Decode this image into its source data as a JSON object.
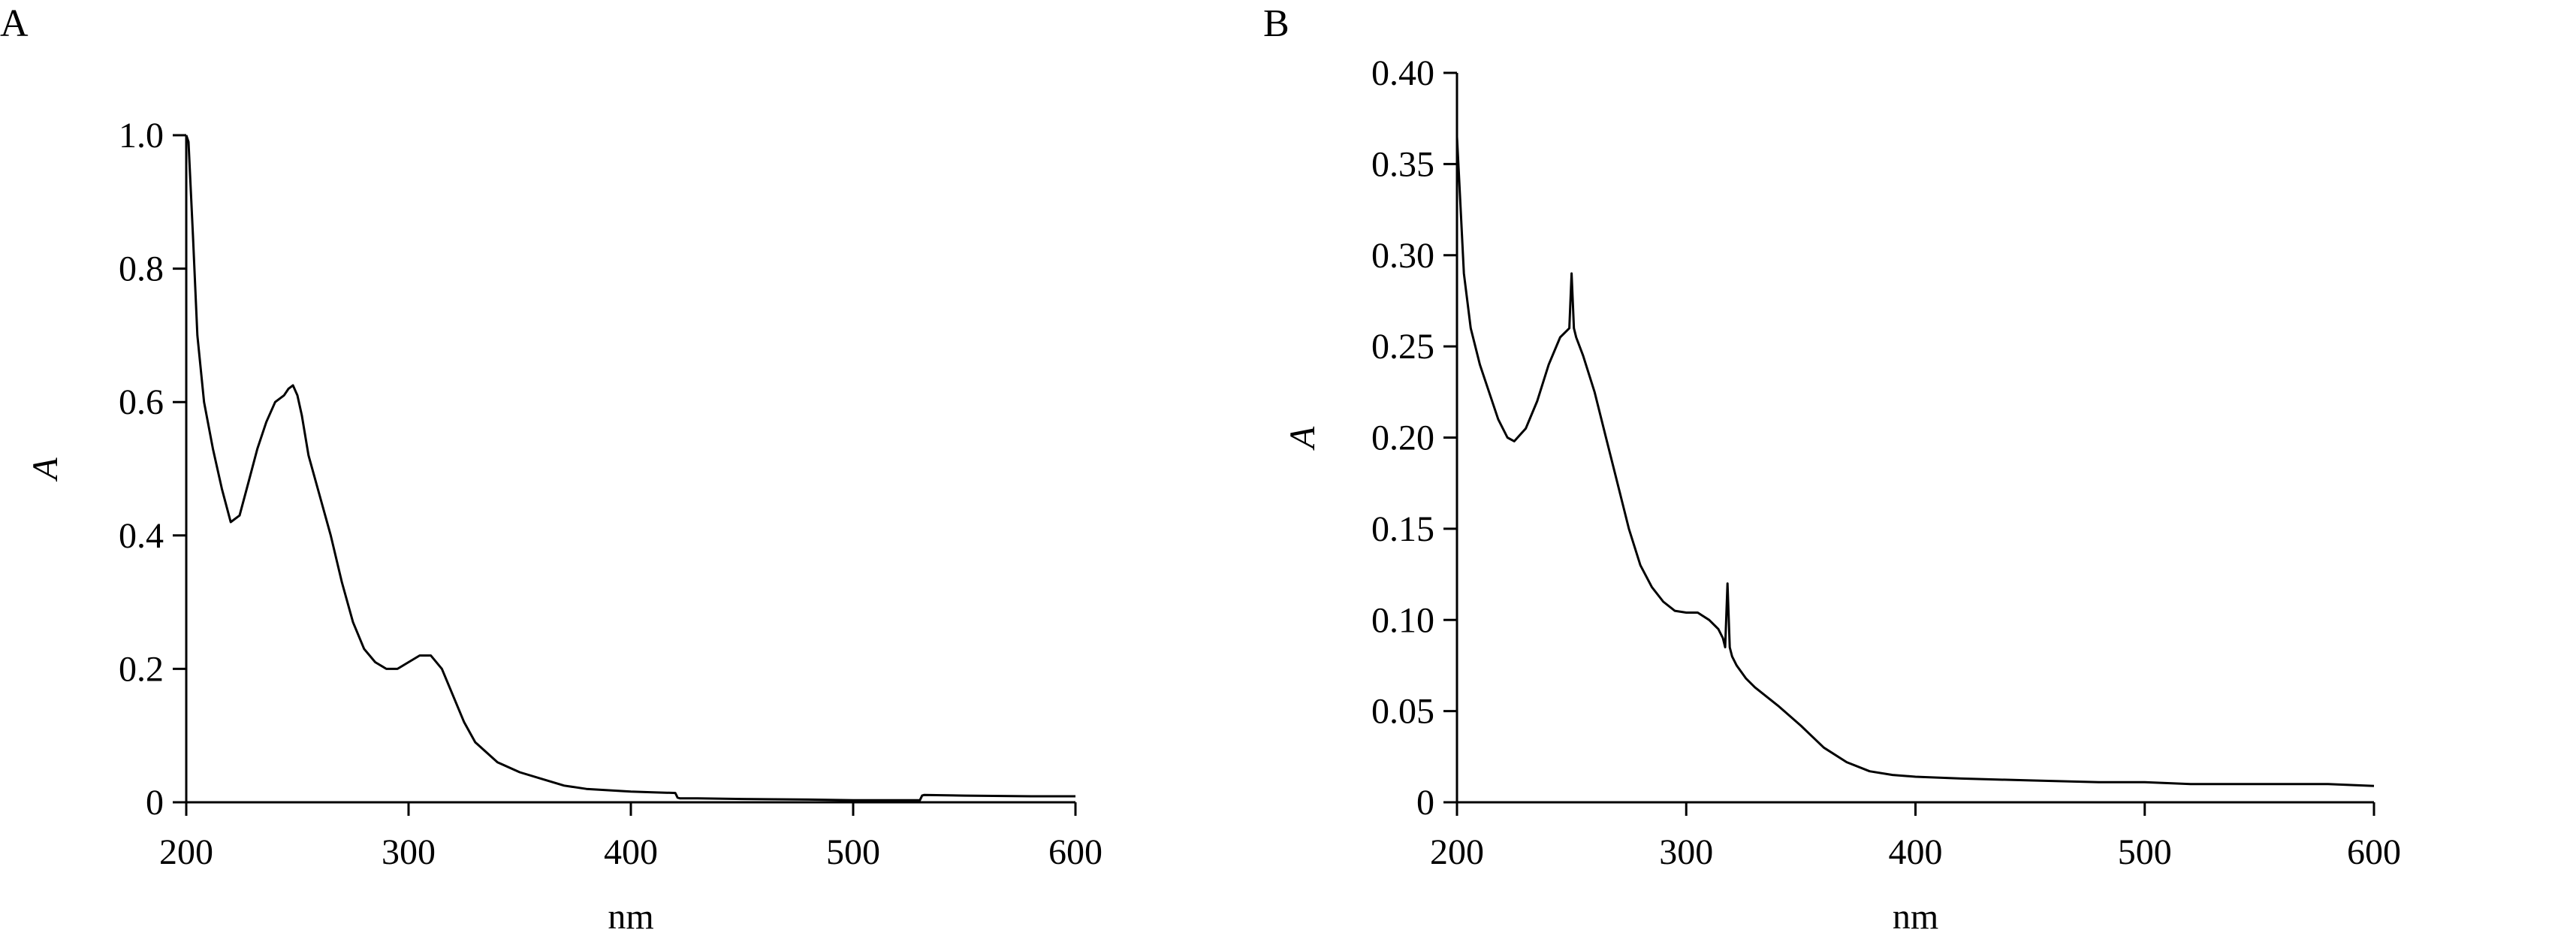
{
  "chart_data": [
    {
      "panel_label": "A",
      "type": "line",
      "xlabel": "nm",
      "ylabel": "A",
      "xlim": [
        200,
        600
      ],
      "ylim": [
        0,
        1.0
      ],
      "xticks": [
        200,
        300,
        400,
        500,
        600
      ],
      "yticks": [
        0,
        0.2,
        0.4,
        0.6,
        0.8,
        1.0
      ],
      "xtick_labels": [
        "200",
        "300",
        "400",
        "500",
        "600"
      ],
      "ytick_labels": [
        "0",
        "0.2",
        "0.4",
        "0.6",
        "0.8",
        "1.0"
      ],
      "grid": false,
      "series": [
        {
          "x": [
            200,
            201,
            203,
            205,
            208,
            212,
            216,
            220,
            224,
            228,
            232,
            236,
            240,
            244,
            246,
            248,
            250,
            252,
            255,
            260,
            265,
            270,
            275,
            280,
            285,
            290,
            295,
            300,
            305,
            310,
            315,
            320,
            325,
            330,
            340,
            350,
            360,
            370,
            380,
            390,
            400,
            410,
            420,
            421,
            422,
            430,
            450,
            480,
            500,
            520,
            530,
            531,
            532,
            550,
            580,
            600
          ],
          "y": [
            1.0,
            0.99,
            0.85,
            0.7,
            0.6,
            0.53,
            0.47,
            0.42,
            0.43,
            0.48,
            0.53,
            0.57,
            0.6,
            0.61,
            0.62,
            0.625,
            0.61,
            0.58,
            0.52,
            0.46,
            0.4,
            0.33,
            0.27,
            0.23,
            0.21,
            0.2,
            0.2,
            0.21,
            0.22,
            0.22,
            0.2,
            0.16,
            0.12,
            0.09,
            0.06,
            0.045,
            0.035,
            0.025,
            0.02,
            0.018,
            0.016,
            0.015,
            0.014,
            0.007,
            0.006,
            0.006,
            0.005,
            0.004,
            0.003,
            0.003,
            0.003,
            0.01,
            0.011,
            0.01,
            0.009,
            0.009
          ]
        }
      ]
    },
    {
      "panel_label": "B",
      "type": "line",
      "xlabel": "nm",
      "ylabel": "A",
      "xlim": [
        200,
        600
      ],
      "ylim": [
        0,
        0.4
      ],
      "xticks": [
        200,
        300,
        400,
        500,
        600
      ],
      "yticks": [
        0,
        0.05,
        0.1,
        0.15,
        0.2,
        0.25,
        0.3,
        0.35,
        0.4
      ],
      "xtick_labels": [
        "200",
        "300",
        "400",
        "500",
        "600"
      ],
      "ytick_labels": [
        "0",
        "0.05",
        "0.10",
        "0.15",
        "0.20",
        "0.25",
        "0.30",
        "0.35",
        "0.40"
      ],
      "grid": false,
      "series": [
        {
          "x": [
            200,
            201,
            203,
            206,
            210,
            214,
            218,
            222,
            225,
            230,
            235,
            240,
            245,
            249,
            250,
            251,
            252,
            255,
            260,
            265,
            270,
            275,
            280,
            285,
            290,
            295,
            300,
            305,
            310,
            314,
            316,
            317,
            318,
            319,
            320,
            322,
            326,
            330,
            340,
            350,
            360,
            370,
            380,
            390,
            400,
            420,
            450,
            480,
            500,
            520,
            550,
            580,
            600
          ],
          "y": [
            0.365,
            0.34,
            0.29,
            0.26,
            0.24,
            0.225,
            0.21,
            0.2,
            0.198,
            0.205,
            0.22,
            0.24,
            0.255,
            0.26,
            0.29,
            0.26,
            0.255,
            0.245,
            0.225,
            0.2,
            0.175,
            0.15,
            0.13,
            0.118,
            0.11,
            0.105,
            0.104,
            0.104,
            0.1,
            0.095,
            0.09,
            0.085,
            0.12,
            0.085,
            0.08,
            0.075,
            0.068,
            0.063,
            0.053,
            0.042,
            0.03,
            0.022,
            0.017,
            0.015,
            0.014,
            0.013,
            0.012,
            0.011,
            0.011,
            0.01,
            0.01,
            0.01,
            0.009
          ]
        }
      ]
    }
  ]
}
